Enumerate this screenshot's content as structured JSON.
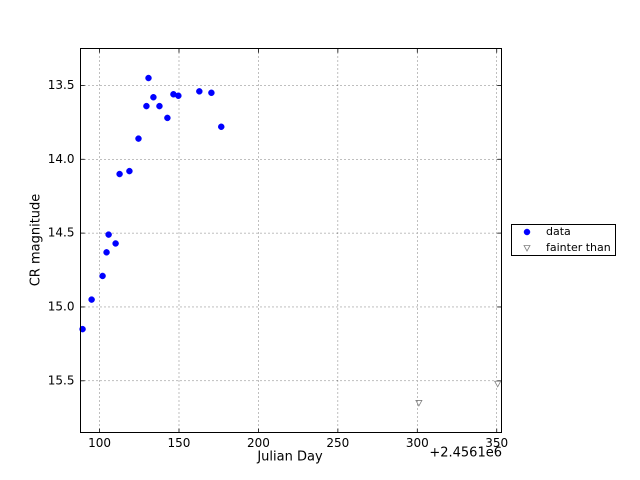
{
  "chart_data": {
    "type": "scatter",
    "xlabel": "Julian Day",
    "ylabel": "CR magnitude",
    "x_offset_label": "+2.4561e6",
    "xlim": [
      88,
      353
    ],
    "ylim": [
      13.25,
      15.85
    ],
    "y_inverted": true,
    "xticks": [
      100,
      150,
      200,
      250,
      300,
      350
    ],
    "yticks": [
      13.5,
      {
        "value": 14,
        "label": "14.0"
      },
      14.5,
      {
        "value": 15,
        "label": "15.0"
      },
      15.5
    ],
    "grid": true,
    "legend": "outside right",
    "series": [
      {
        "name": "data",
        "color": "#0000ff",
        "marker": "circle",
        "filled": true,
        "x": [
          89.3,
          95.0,
          101.9,
          104.4,
          105.7,
          110.1,
          112.6,
          118.8,
          124.5,
          129.5,
          130.8,
          133.9,
          137.7,
          142.7,
          146.5,
          149.6,
          162.8,
          170.4,
          176.6
        ],
        "values": [
          15.15,
          14.95,
          14.79,
          14.63,
          14.51,
          14.57,
          14.1,
          14.08,
          13.86,
          13.64,
          13.45,
          13.58,
          13.64,
          13.72,
          13.56,
          13.57,
          13.54,
          13.55,
          13.78
        ]
      },
      {
        "name": "fainter than",
        "color": "#808080",
        "marker": "triangle-down",
        "filled": false,
        "x": [
          301.0,
          350.6
        ],
        "values": [
          15.65,
          15.52
        ]
      }
    ]
  }
}
